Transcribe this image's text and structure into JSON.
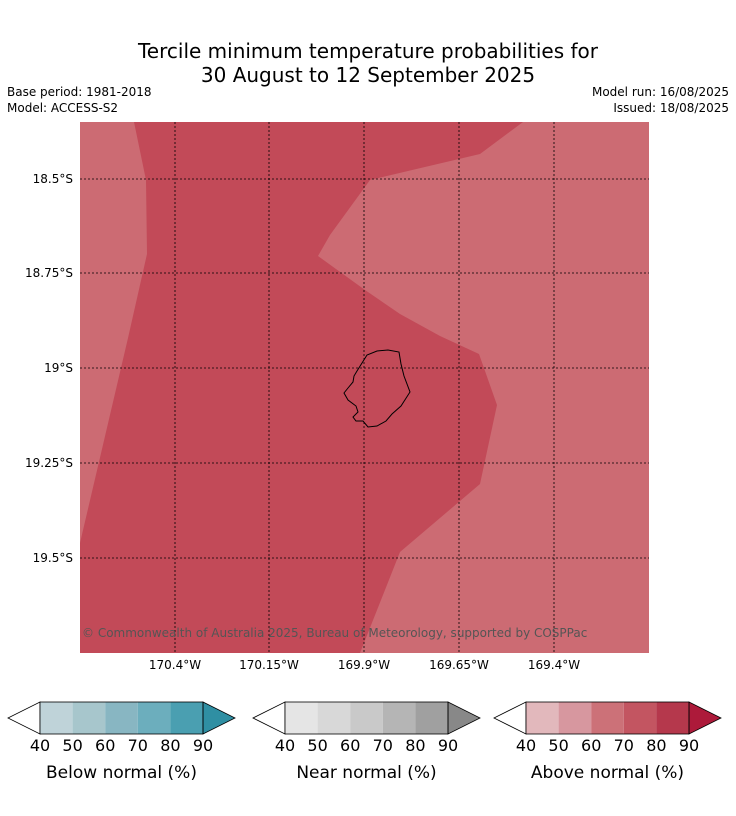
{
  "title_line1": "Tercile minimum temperature probabilities for",
  "title_line2": "30 August to 12 September 2025",
  "base_period": "Base period: 1981-2018",
  "model": "Model: ACCESS-S2",
  "model_run": "Model run: 16/08/2025",
  "issued": "Issued: 18/08/2025",
  "copyright": "© Commonwealth of Australia 2025, Bureau of Meteorology, supported by COSPPac",
  "lat_labels": [
    "18.5°S",
    "18.75°S",
    "19°S",
    "19.25°S",
    "19.5°S"
  ],
  "lon_labels": [
    "170.4°W",
    "170.15°W",
    "169.9°W",
    "169.65°W",
    "169.4°W"
  ],
  "colorbars": [
    {
      "title": "Below normal (%)",
      "ticks": [
        "40",
        "50",
        "60",
        "70",
        "80",
        "90"
      ],
      "under_color": "#ffffff",
      "colors": [
        "#bfd3d9",
        "#a7c6cc",
        "#88b6c2",
        "#6caebd",
        "#4a9fb1"
      ],
      "over_color": "#2f8fa3"
    },
    {
      "title": "Near normal (%)",
      "ticks": [
        "40",
        "50",
        "60",
        "70",
        "80",
        "90"
      ],
      "under_color": "#ffffff",
      "colors": [
        "#e5e5e5",
        "#d8d8d8",
        "#c9c9c9",
        "#b5b5b5",
        "#a0a0a0"
      ],
      "over_color": "#888888"
    },
    {
      "title": "Above normal (%)",
      "ticks": [
        "40",
        "50",
        "60",
        "70",
        "80",
        "90"
      ],
      "under_color": "#ffffff",
      "colors": [
        "#e2b8bc",
        "#d7979f",
        "#cc7178",
        "#c35561",
        "#b5384c"
      ],
      "over_color": "#ad1a3a"
    }
  ],
  "map_colors": {
    "above_60_70": "#cc6b73",
    "above_70_80": "#c24a58"
  }
}
